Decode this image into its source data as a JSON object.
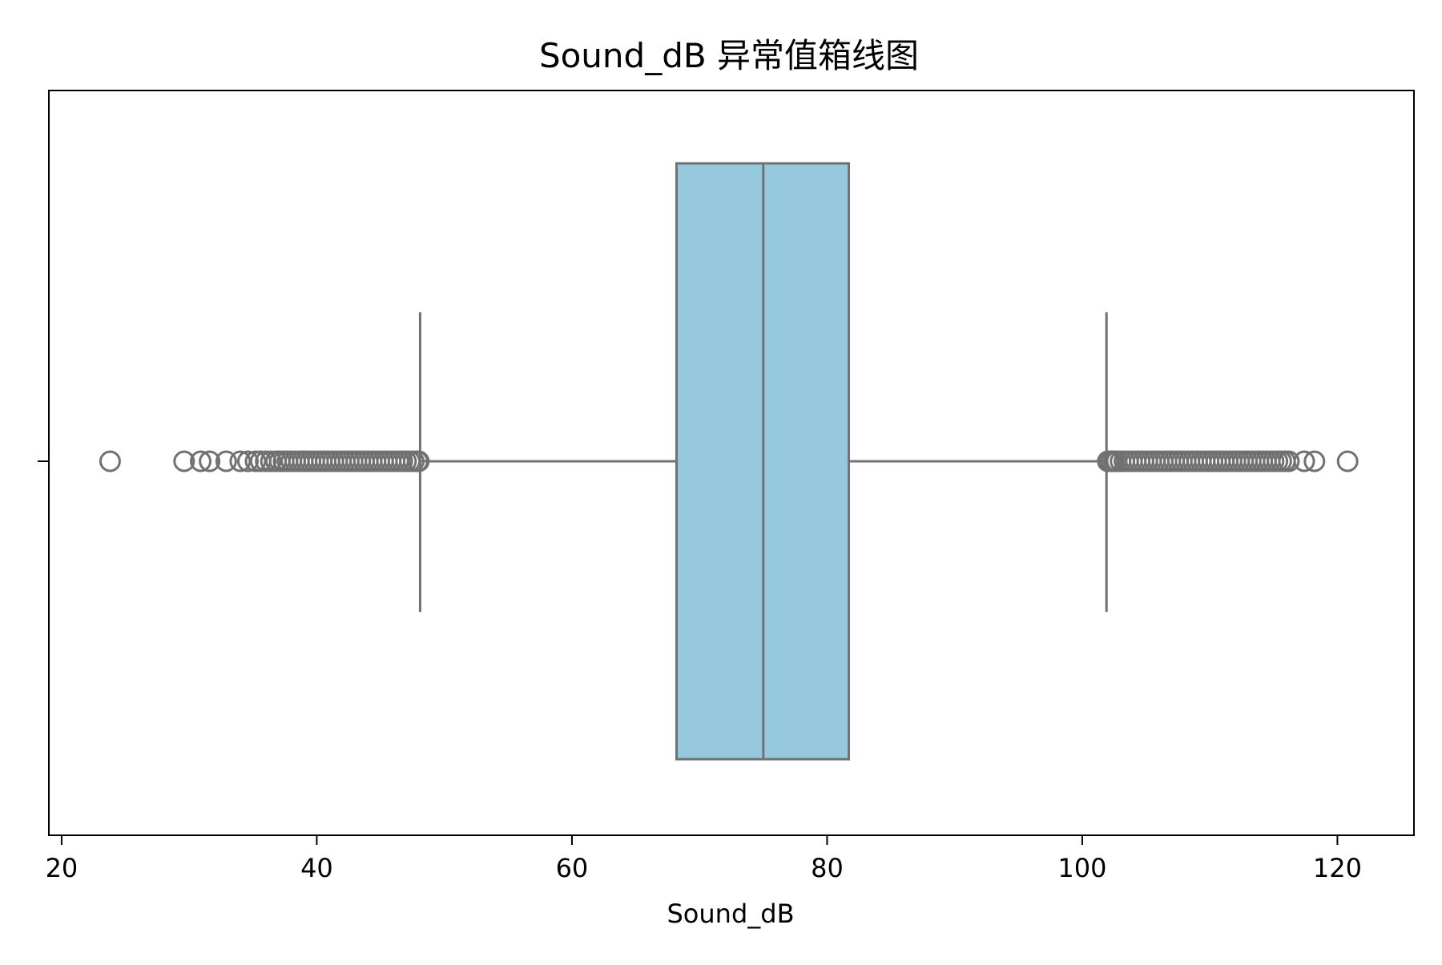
{
  "chart_data": {
    "type": "box",
    "title": "Sound_dB 异常值箱线图",
    "xlabel": "Sound_dB",
    "ylabel": "",
    "orientation": "horizontal",
    "xlim": [
      19,
      126
    ],
    "xticks": [
      20,
      40,
      60,
      80,
      100,
      120
    ],
    "box": {
      "whisker_low": 48.1,
      "q1": 68.2,
      "median": 75.0,
      "q3": 81.7,
      "whisker_high": 101.9
    },
    "outliers": [
      23.8,
      29.6,
      30.9,
      31.6,
      32.9,
      34.0,
      34.6,
      35.2,
      35.6,
      36.0,
      36.4,
      36.8,
      37.1,
      37.4,
      37.7,
      38.0,
      38.3,
      38.6,
      38.9,
      39.2,
      39.5,
      39.8,
      40.1,
      40.4,
      40.7,
      41.0,
      41.3,
      41.6,
      41.9,
      42.2,
      42.5,
      42.8,
      43.1,
      43.4,
      43.7,
      44.0,
      44.3,
      44.6,
      44.9,
      45.2,
      45.5,
      45.8,
      46.1,
      46.4,
      46.7,
      47.0,
      47.3,
      47.6,
      47.9,
      48.0,
      102.0,
      102.1,
      102.3,
      102.5,
      102.7,
      103.0,
      103.3,
      103.6,
      103.9,
      104.2,
      104.5,
      104.8,
      105.1,
      105.4,
      105.7,
      106.0,
      106.3,
      106.6,
      106.9,
      107.2,
      107.5,
      107.8,
      108.1,
      108.4,
      108.7,
      109.0,
      109.3,
      109.6,
      109.9,
      110.2,
      110.5,
      110.8,
      111.1,
      111.4,
      111.7,
      112.0,
      112.3,
      112.6,
      112.9,
      113.2,
      113.5,
      113.8,
      114.1,
      114.4,
      114.7,
      115.0,
      115.3,
      115.6,
      115.9,
      116.2,
      117.4,
      118.2,
      120.8
    ],
    "colors": {
      "box_fill": "#96c9de",
      "line": "#717171",
      "axes": "#000000"
    }
  }
}
